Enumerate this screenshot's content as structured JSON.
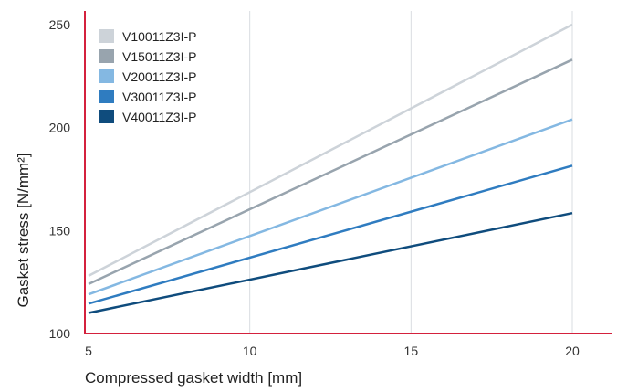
{
  "chart_data": {
    "type": "line",
    "xlabel": "Compressed gasket width [mm]",
    "ylabel": "Gasket stress [N/mm²]",
    "xlim": [
      5,
      21.2
    ],
    "ylim": [
      100,
      255
    ],
    "x_ticks": [
      5,
      10,
      15,
      20
    ],
    "y_ticks": [
      100,
      150,
      200,
      250
    ],
    "grid": "vertical",
    "legend_position": "top-left",
    "axis_color": "#d4213d",
    "series": [
      {
        "name": "V10011Z3I-P",
        "color": "#cdd3d9",
        "points": [
          [
            5,
            128
          ],
          [
            20,
            250
          ]
        ]
      },
      {
        "name": "V15011Z3I-P",
        "color": "#98a4ae",
        "points": [
          [
            5,
            124
          ],
          [
            20,
            233
          ]
        ]
      },
      {
        "name": "V20011Z3I-P",
        "color": "#84b8e2",
        "points": [
          [
            5,
            119
          ],
          [
            20,
            204
          ]
        ]
      },
      {
        "name": "V30011Z3I-P",
        "color": "#2f7cc0",
        "points": [
          [
            5,
            114.5
          ],
          [
            20,
            181.5
          ]
        ]
      },
      {
        "name": "V40011Z3I-P",
        "color": "#0f4c7d",
        "points": [
          [
            5,
            110
          ],
          [
            20,
            158.5
          ]
        ]
      }
    ]
  }
}
